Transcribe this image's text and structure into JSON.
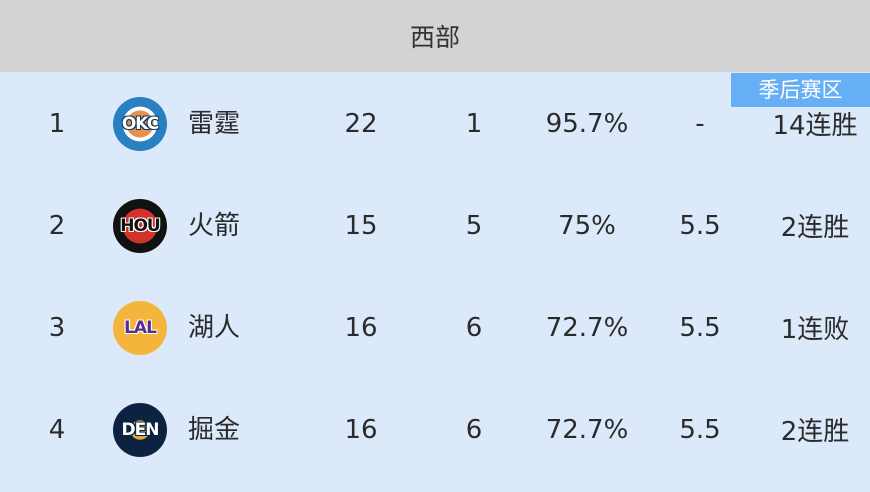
{
  "header": {
    "title": "西部"
  },
  "badge": {
    "label": "季后赛区",
    "color": "#66aff4"
  },
  "rows": [
    {
      "rank": "1",
      "logo": "OKC",
      "team": "雷霆",
      "wins": "22",
      "losses": "1",
      "pct": "95.7%",
      "gb": "-",
      "streak": "14连胜"
    },
    {
      "rank": "2",
      "logo": "HOU",
      "team": "火箭",
      "wins": "15",
      "losses": "5",
      "pct": "75%",
      "gb": "5.5",
      "streak": "2连胜"
    },
    {
      "rank": "3",
      "logo": "LAL",
      "team": "湖人",
      "wins": "16",
      "losses": "6",
      "pct": "72.7%",
      "gb": "5.5",
      "streak": "1连败"
    },
    {
      "rank": "4",
      "logo": "DEN",
      "team": "掘金",
      "wins": "16",
      "losses": "6",
      "pct": "72.7%",
      "gb": "5.5",
      "streak": "2连胜"
    }
  ]
}
